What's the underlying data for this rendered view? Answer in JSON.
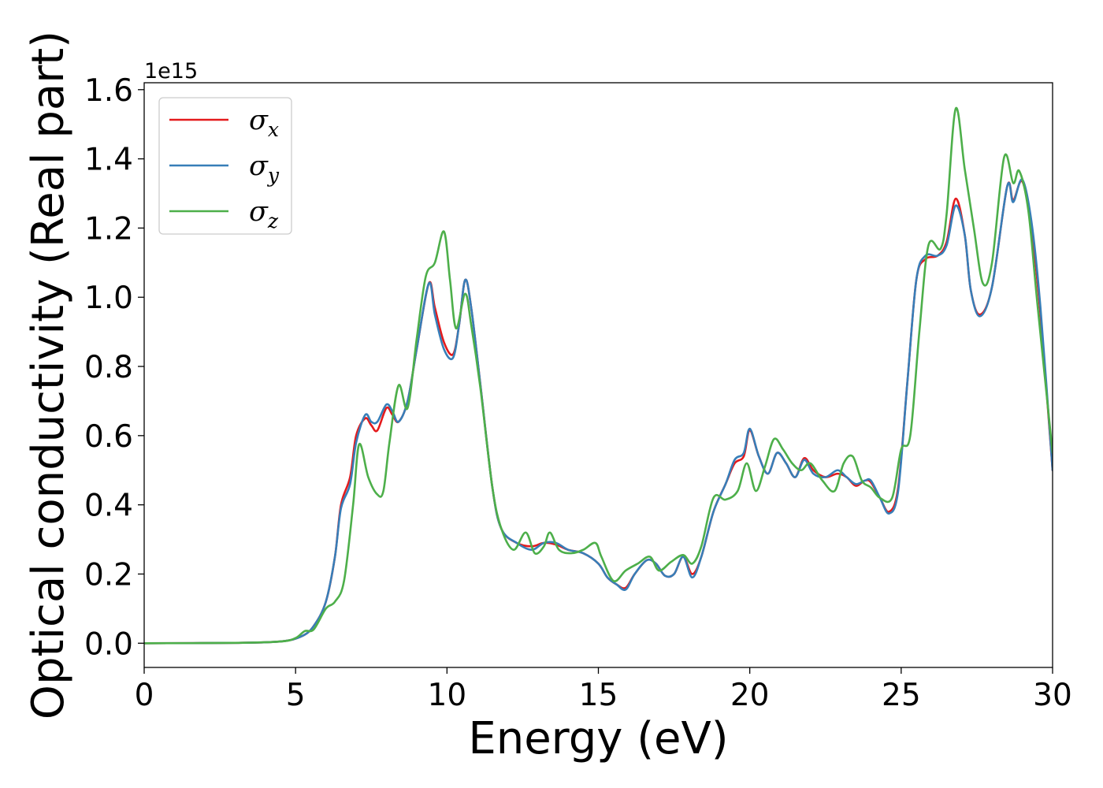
{
  "chart_data": {
    "type": "line",
    "title": "",
    "xlabel": "Energy (eV)",
    "ylabel": "Optical conductivity (Real part)",
    "y_offset_text": "1e15",
    "xlim": [
      0,
      30
    ],
    "ylim": [
      -0.07,
      1.62
    ],
    "x_ticks": [
      0,
      5,
      10,
      15,
      20,
      25,
      30
    ],
    "y_ticks": [
      0.0,
      0.2,
      0.4,
      0.6,
      0.8,
      1.0,
      1.2,
      1.4,
      1.6
    ],
    "x_tick_labels": [
      "0",
      "5",
      "10",
      "15",
      "20",
      "25",
      "30"
    ],
    "y_tick_labels": [
      "0.0",
      "0.2",
      "0.4",
      "0.6",
      "0.8",
      "1.0",
      "1.2",
      "1.4",
      "1.6"
    ],
    "grid": false,
    "legend_position": "top-left",
    "series": [
      {
        "name": "σx",
        "name_base": "σ",
        "name_sub": "x",
        "color": "#e41a1c",
        "points": [
          [
            0,
            0
          ],
          [
            3,
            0.001
          ],
          [
            4.5,
            0.005
          ],
          [
            5.2,
            0.02
          ],
          [
            5.6,
            0.05
          ],
          [
            6.0,
            0.12
          ],
          [
            6.3,
            0.25
          ],
          [
            6.5,
            0.4
          ],
          [
            6.8,
            0.48
          ],
          [
            7.0,
            0.6
          ],
          [
            7.3,
            0.65
          ],
          [
            7.5,
            0.63
          ],
          [
            7.7,
            0.615
          ],
          [
            8.0,
            0.68
          ],
          [
            8.2,
            0.66
          ],
          [
            8.4,
            0.64
          ],
          [
            8.7,
            0.7
          ],
          [
            9.0,
            0.85
          ],
          [
            9.4,
            1.04
          ],
          [
            9.6,
            0.97
          ],
          [
            9.9,
            0.87
          ],
          [
            10.2,
            0.835
          ],
          [
            10.4,
            0.92
          ],
          [
            10.6,
            1.05
          ],
          [
            10.8,
            0.97
          ],
          [
            11.1,
            0.75
          ],
          [
            11.5,
            0.45
          ],
          [
            11.8,
            0.33
          ],
          [
            12.3,
            0.29
          ],
          [
            12.8,
            0.28
          ],
          [
            13.2,
            0.29
          ],
          [
            13.6,
            0.285
          ],
          [
            14.0,
            0.27
          ],
          [
            14.5,
            0.26
          ],
          [
            15.0,
            0.23
          ],
          [
            15.3,
            0.19
          ],
          [
            15.6,
            0.17
          ],
          [
            15.9,
            0.16
          ],
          [
            16.2,
            0.2
          ],
          [
            16.6,
            0.24
          ],
          [
            16.9,
            0.23
          ],
          [
            17.2,
            0.195
          ],
          [
            17.5,
            0.2
          ],
          [
            17.8,
            0.25
          ],
          [
            18.1,
            0.2
          ],
          [
            18.4,
            0.25
          ],
          [
            18.8,
            0.38
          ],
          [
            19.2,
            0.46
          ],
          [
            19.5,
            0.52
          ],
          [
            19.8,
            0.54
          ],
          [
            20.0,
            0.615
          ],
          [
            20.3,
            0.54
          ],
          [
            20.6,
            0.49
          ],
          [
            20.9,
            0.55
          ],
          [
            21.2,
            0.52
          ],
          [
            21.5,
            0.48
          ],
          [
            21.8,
            0.535
          ],
          [
            22.1,
            0.5
          ],
          [
            22.5,
            0.48
          ],
          [
            22.9,
            0.49
          ],
          [
            23.2,
            0.48
          ],
          [
            23.5,
            0.455
          ],
          [
            23.8,
            0.47
          ],
          [
            24.0,
            0.465
          ],
          [
            24.3,
            0.42
          ],
          [
            24.6,
            0.38
          ],
          [
            24.9,
            0.45
          ],
          [
            25.2,
            0.75
          ],
          [
            25.5,
            1.05
          ],
          [
            25.8,
            1.11
          ],
          [
            26.2,
            1.12
          ],
          [
            26.5,
            1.16
          ],
          [
            26.8,
            1.285
          ],
          [
            27.1,
            1.18
          ],
          [
            27.3,
            1.02
          ],
          [
            27.6,
            0.95
          ],
          [
            28.0,
            1.03
          ],
          [
            28.5,
            1.32
          ],
          [
            28.7,
            1.28
          ],
          [
            29.0,
            1.335
          ],
          [
            29.3,
            1.2
          ],
          [
            29.6,
            0.95
          ],
          [
            30.0,
            0.5
          ]
        ]
      },
      {
        "name": "σy",
        "name_base": "σ",
        "name_sub": "y",
        "color": "#377eb8",
        "points": [
          [
            0,
            0
          ],
          [
            3,
            0.001
          ],
          [
            4.5,
            0.005
          ],
          [
            5.2,
            0.02
          ],
          [
            5.6,
            0.05
          ],
          [
            6.0,
            0.12
          ],
          [
            6.3,
            0.25
          ],
          [
            6.5,
            0.39
          ],
          [
            6.8,
            0.46
          ],
          [
            7.0,
            0.58
          ],
          [
            7.3,
            0.66
          ],
          [
            7.5,
            0.64
          ],
          [
            7.7,
            0.64
          ],
          [
            8.0,
            0.69
          ],
          [
            8.2,
            0.67
          ],
          [
            8.4,
            0.64
          ],
          [
            8.7,
            0.7
          ],
          [
            9.0,
            0.85
          ],
          [
            9.4,
            1.04
          ],
          [
            9.6,
            0.95
          ],
          [
            9.9,
            0.85
          ],
          [
            10.2,
            0.825
          ],
          [
            10.4,
            0.92
          ],
          [
            10.6,
            1.05
          ],
          [
            10.8,
            0.97
          ],
          [
            11.1,
            0.75
          ],
          [
            11.5,
            0.45
          ],
          [
            11.8,
            0.33
          ],
          [
            12.3,
            0.29
          ],
          [
            12.8,
            0.27
          ],
          [
            13.2,
            0.29
          ],
          [
            13.6,
            0.29
          ],
          [
            14.0,
            0.27
          ],
          [
            14.5,
            0.26
          ],
          [
            15.0,
            0.23
          ],
          [
            15.3,
            0.19
          ],
          [
            15.6,
            0.17
          ],
          [
            15.9,
            0.155
          ],
          [
            16.2,
            0.2
          ],
          [
            16.6,
            0.24
          ],
          [
            16.9,
            0.23
          ],
          [
            17.2,
            0.195
          ],
          [
            17.5,
            0.2
          ],
          [
            17.8,
            0.25
          ],
          [
            18.1,
            0.19
          ],
          [
            18.4,
            0.25
          ],
          [
            18.8,
            0.38
          ],
          [
            19.2,
            0.46
          ],
          [
            19.5,
            0.53
          ],
          [
            19.8,
            0.55
          ],
          [
            20.0,
            0.62
          ],
          [
            20.3,
            0.54
          ],
          [
            20.6,
            0.49
          ],
          [
            20.9,
            0.55
          ],
          [
            21.2,
            0.52
          ],
          [
            21.5,
            0.48
          ],
          [
            21.8,
            0.53
          ],
          [
            22.1,
            0.49
          ],
          [
            22.5,
            0.48
          ],
          [
            22.9,
            0.5
          ],
          [
            23.2,
            0.48
          ],
          [
            23.5,
            0.46
          ],
          [
            23.8,
            0.47
          ],
          [
            24.0,
            0.47
          ],
          [
            24.3,
            0.42
          ],
          [
            24.6,
            0.375
          ],
          [
            24.9,
            0.44
          ],
          [
            25.2,
            0.75
          ],
          [
            25.5,
            1.05
          ],
          [
            25.8,
            1.12
          ],
          [
            26.2,
            1.12
          ],
          [
            26.5,
            1.15
          ],
          [
            26.8,
            1.265
          ],
          [
            27.1,
            1.18
          ],
          [
            27.3,
            1.02
          ],
          [
            27.6,
            0.945
          ],
          [
            28.0,
            1.03
          ],
          [
            28.5,
            1.32
          ],
          [
            28.7,
            1.275
          ],
          [
            29.0,
            1.34
          ],
          [
            29.3,
            1.22
          ],
          [
            29.6,
            0.97
          ],
          [
            30.0,
            0.5
          ]
        ]
      },
      {
        "name": "σz",
        "name_base": "σ",
        "name_sub": "z",
        "color": "#4daf4a",
        "points": [
          [
            0,
            0
          ],
          [
            3,
            0.001
          ],
          [
            4.5,
            0.005
          ],
          [
            5.0,
            0.015
          ],
          [
            5.3,
            0.035
          ],
          [
            5.6,
            0.04
          ],
          [
            6.0,
            0.1
          ],
          [
            6.3,
            0.12
          ],
          [
            6.6,
            0.18
          ],
          [
            6.9,
            0.4
          ],
          [
            7.1,
            0.575
          ],
          [
            7.4,
            0.48
          ],
          [
            7.7,
            0.43
          ],
          [
            7.9,
            0.44
          ],
          [
            8.1,
            0.58
          ],
          [
            8.4,
            0.745
          ],
          [
            8.7,
            0.68
          ],
          [
            9.0,
            0.88
          ],
          [
            9.3,
            1.06
          ],
          [
            9.6,
            1.1
          ],
          [
            9.9,
            1.19
          ],
          [
            10.1,
            1.05
          ],
          [
            10.3,
            0.91
          ],
          [
            10.6,
            1.01
          ],
          [
            10.8,
            0.92
          ],
          [
            11.1,
            0.74
          ],
          [
            11.5,
            0.45
          ],
          [
            11.8,
            0.33
          ],
          [
            12.2,
            0.27
          ],
          [
            12.6,
            0.32
          ],
          [
            12.9,
            0.26
          ],
          [
            13.2,
            0.28
          ],
          [
            13.4,
            0.32
          ],
          [
            13.7,
            0.27
          ],
          [
            14.1,
            0.26
          ],
          [
            14.5,
            0.27
          ],
          [
            14.9,
            0.29
          ],
          [
            15.1,
            0.25
          ],
          [
            15.5,
            0.18
          ],
          [
            15.9,
            0.21
          ],
          [
            16.3,
            0.23
          ],
          [
            16.7,
            0.25
          ],
          [
            17.0,
            0.21
          ],
          [
            17.4,
            0.235
          ],
          [
            17.8,
            0.255
          ],
          [
            18.1,
            0.23
          ],
          [
            18.4,
            0.28
          ],
          [
            18.8,
            0.42
          ],
          [
            19.2,
            0.415
          ],
          [
            19.6,
            0.44
          ],
          [
            19.9,
            0.52
          ],
          [
            20.2,
            0.44
          ],
          [
            20.5,
            0.51
          ],
          [
            20.8,
            0.59
          ],
          [
            21.1,
            0.56
          ],
          [
            21.4,
            0.52
          ],
          [
            21.7,
            0.5
          ],
          [
            22.0,
            0.52
          ],
          [
            22.4,
            0.47
          ],
          [
            22.8,
            0.44
          ],
          [
            23.1,
            0.52
          ],
          [
            23.4,
            0.54
          ],
          [
            23.7,
            0.47
          ],
          [
            24.0,
            0.45
          ],
          [
            24.3,
            0.42
          ],
          [
            24.7,
            0.42
          ],
          [
            25.0,
            0.56
          ],
          [
            25.3,
            0.6
          ],
          [
            25.6,
            0.9
          ],
          [
            25.9,
            1.15
          ],
          [
            26.3,
            1.14
          ],
          [
            26.5,
            1.24
          ],
          [
            26.8,
            1.545
          ],
          [
            27.1,
            1.37
          ],
          [
            27.4,
            1.2
          ],
          [
            27.7,
            1.04
          ],
          [
            28.0,
            1.1
          ],
          [
            28.4,
            1.405
          ],
          [
            28.7,
            1.33
          ],
          [
            28.9,
            1.365
          ],
          [
            29.2,
            1.25
          ],
          [
            29.5,
            0.98
          ],
          [
            30.0,
            0.55
          ]
        ]
      }
    ]
  }
}
